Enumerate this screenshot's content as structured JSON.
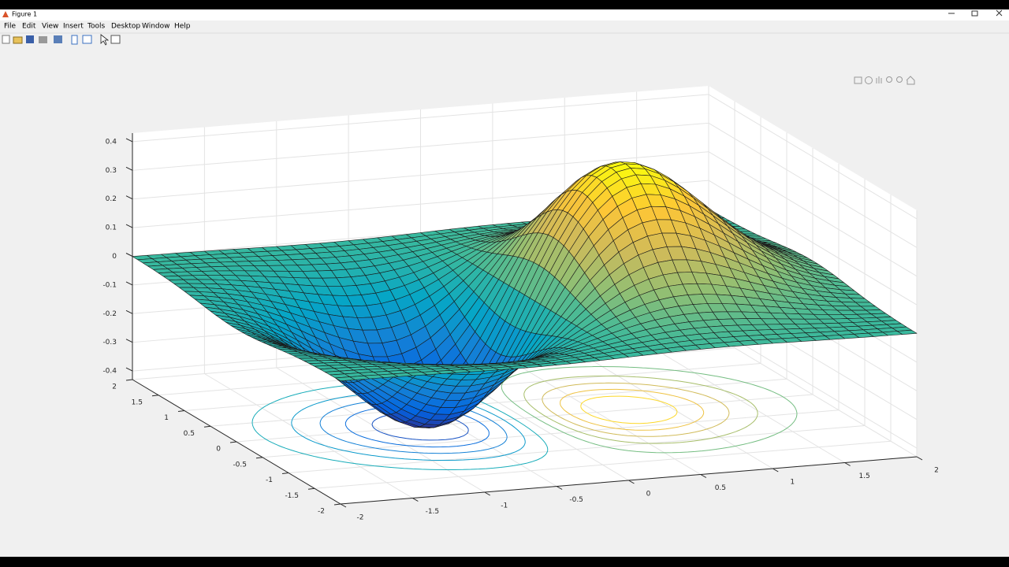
{
  "window": {
    "title": "Figure 1",
    "menu": [
      "File",
      "Edit",
      "View",
      "Insert",
      "Tools",
      "Desktop",
      "Window",
      "Help"
    ]
  },
  "chart_data": {
    "type": "surface",
    "xlim": [
      -2,
      2
    ],
    "ylim": [
      -2,
      2
    ],
    "zlim": [
      -0.43,
      0.43
    ],
    "xticks": [
      -2,
      -1.5,
      -1,
      -0.5,
      0,
      0.5,
      1,
      1.5,
      2
    ],
    "yticks": [
      -2,
      -1.5,
      -1,
      -0.5,
      0,
      0.5,
      1,
      1.5,
      2
    ],
    "zticks": [
      -0.4,
      -0.3,
      -0.2,
      -0.1,
      0,
      0.1,
      0.2,
      0.3,
      0.4
    ],
    "grid": true,
    "colormap": "parula"
  }
}
